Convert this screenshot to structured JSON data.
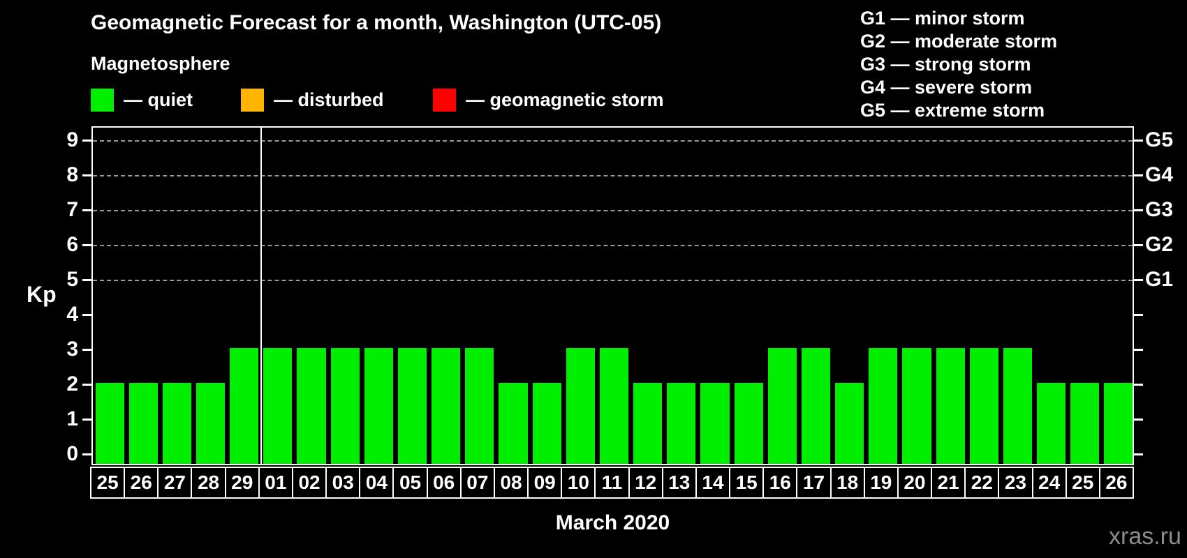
{
  "title": "Geomagnetic Forecast for a month, Washington (UTC-05)",
  "legend": {
    "heading": "Magnetosphere",
    "items": [
      {
        "name": "quiet",
        "label": "— quiet",
        "color": "#00ee00"
      },
      {
        "name": "disturbed",
        "label": "— disturbed",
        "color": "#ffb400"
      },
      {
        "name": "geomagnetic-storm",
        "label": "— geomagnetic storm",
        "color": "#ff0000"
      }
    ]
  },
  "storm_scale_legend": {
    "lines": [
      "G1 — minor storm",
      "G2 — moderate storm",
      "G3 — strong storm",
      "G4 — severe storm",
      "G5 — extreme storm"
    ]
  },
  "chart_data": {
    "type": "bar",
    "title": "Geomagnetic Forecast for a month, Washington (UTC-05)",
    "categories": [
      "25",
      "26",
      "27",
      "28",
      "29",
      "01",
      "02",
      "03",
      "04",
      "05",
      "06",
      "07",
      "08",
      "09",
      "10",
      "11",
      "12",
      "13",
      "14",
      "15",
      "16",
      "17",
      "18",
      "19",
      "20",
      "21",
      "22",
      "23",
      "24",
      "25",
      "26"
    ],
    "values": [
      2,
      2,
      2,
      2,
      3,
      3,
      3,
      3,
      3,
      3,
      3,
      3,
      2,
      2,
      3,
      3,
      2,
      2,
      2,
      2,
      3,
      3,
      2,
      3,
      3,
      3,
      3,
      3,
      2,
      2,
      2
    ],
    "bar_color": "#00ee00",
    "xlabel": "March 2020",
    "ylabel": "Kp",
    "ylim": [
      0,
      9
    ],
    "yticks": [
      0,
      1,
      2,
      3,
      4,
      5,
      6,
      7,
      8,
      9
    ],
    "gridlines_at": [
      5,
      6,
      7,
      8,
      9
    ],
    "right_axis_labels": [
      {
        "kp": 5,
        "label": "G1"
      },
      {
        "kp": 6,
        "label": "G2"
      },
      {
        "kp": 7,
        "label": "G3"
      },
      {
        "kp": 8,
        "label": "G4"
      },
      {
        "kp": 9,
        "label": "G5"
      }
    ],
    "month_separator_after": 5,
    "grid": true,
    "legend_position": "top"
  },
  "watermark": "xras.ru"
}
